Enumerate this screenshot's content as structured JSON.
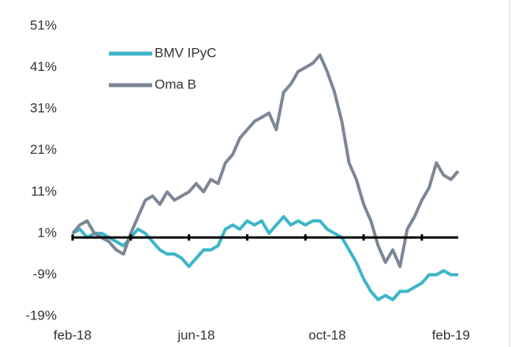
{
  "chart_data": {
    "type": "line",
    "categories": [
      "feb-18",
      null,
      null,
      null,
      null,
      null,
      null,
      null,
      null,
      null,
      null,
      null,
      null,
      null,
      null,
      null,
      null,
      "jun-18",
      null,
      null,
      null,
      null,
      null,
      null,
      null,
      null,
      null,
      null,
      null,
      null,
      null,
      null,
      null,
      null,
      null,
      "oct-18",
      null,
      null,
      null,
      null,
      null,
      null,
      null,
      null,
      null,
      null,
      null,
      null,
      null,
      null,
      null,
      null,
      "feb-19",
      null
    ],
    "series": [
      {
        "name": "BMV IPyC",
        "color": "#3cb5c9",
        "values": [
          1,
          2,
          0,
          1,
          1,
          0,
          -1,
          -2,
          0,
          2,
          1,
          -1,
          -3,
          -4,
          -4,
          -5,
          -7,
          -5,
          -3,
          -3,
          -2,
          2,
          3,
          2,
          4,
          3,
          4,
          1,
          3,
          5,
          3,
          4,
          3,
          4,
          4,
          2,
          1,
          0,
          -3,
          -6,
          -10,
          -13,
          -15,
          -14,
          -15,
          -13,
          -13,
          -12,
          -11,
          -9,
          -9,
          -8,
          -9,
          -9
        ]
      },
      {
        "name": "Oma B",
        "color": "#7d8794",
        "values": [
          1,
          3,
          4,
          1,
          0,
          -1,
          -3,
          -4,
          1,
          5,
          9,
          10,
          8,
          11,
          9,
          10,
          11,
          13,
          11,
          14,
          13,
          18,
          20,
          24,
          26,
          28,
          29,
          30,
          26,
          35,
          37,
          40,
          41,
          42,
          44,
          40,
          35,
          28,
          18,
          14,
          8,
          4,
          -2,
          -6,
          -3,
          -7,
          2,
          5,
          9,
          12,
          18,
          15,
          14,
          16
        ]
      }
    ],
    "ylim": [
      -19,
      51
    ],
    "yticks": [
      {
        "value": -19,
        "label": "-19%"
      },
      {
        "value": -9,
        "label": "-9%"
      },
      {
        "value": 1,
        "label": "1%"
      },
      {
        "value": 11,
        "label": "11%"
      },
      {
        "value": 21,
        "label": "21%"
      },
      {
        "value": 31,
        "label": "31%"
      },
      {
        "value": 41,
        "label": "41%"
      },
      {
        "value": 51,
        "label": "51%"
      }
    ],
    "grid": false,
    "legend": "upper left"
  }
}
